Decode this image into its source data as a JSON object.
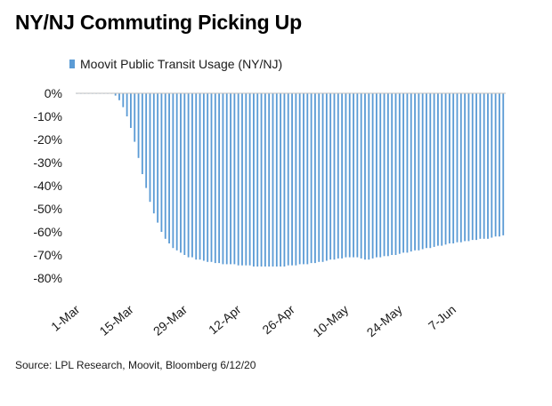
{
  "title": "NY/NJ Commuting Picking Up",
  "source": "Source: LPL Research, Moovit, Bloomberg 6/12/20",
  "colors": {
    "bar": "#5b9bd5",
    "text": "#1a1a1a",
    "axis": "#bfbfbf"
  },
  "chart_data": {
    "type": "bar",
    "series": [
      {
        "name": "Moovit Public Transit Usage (NY/NJ)"
      }
    ],
    "ylim": [
      -80,
      0
    ],
    "yticks": [
      0,
      -10,
      -20,
      -30,
      -40,
      -50,
      -60,
      -70,
      -80
    ],
    "ytick_labels": [
      "0%",
      "-10%",
      "-20%",
      "-30%",
      "-40%",
      "-50%",
      "-60%",
      "-70%",
      "-80%"
    ],
    "xtick_labels": [
      "1-Mar",
      "15-Mar",
      "29-Mar",
      "12-Apr",
      "26-Apr",
      "10-May",
      "24-May",
      "7-Jun"
    ],
    "start_date": "2020-03-01",
    "values": [
      0,
      0,
      0,
      0,
      0,
      0,
      0,
      0,
      0,
      0,
      -1,
      -3,
      -6,
      -10,
      -15,
      -21,
      -28,
      -35,
      -41,
      -47,
      -52,
      -56,
      -60,
      -63,
      -65,
      -67,
      -68,
      -69,
      -70,
      -71,
      -71,
      -72,
      -72,
      -72.5,
      -73,
      -73,
      -73.5,
      -73.5,
      -74,
      -74,
      -74,
      -74,
      -74.5,
      -74.5,
      -74.5,
      -74.5,
      -75,
      -75,
      -75,
      -75,
      -75,
      -75,
      -75,
      -75,
      -75,
      -74.5,
      -74.5,
      -74.5,
      -74,
      -74,
      -74,
      -73.5,
      -73.5,
      -73,
      -73,
      -72.5,
      -72,
      -72,
      -71.5,
      -71.5,
      -71,
      -71,
      -71,
      -71,
      -71.5,
      -72,
      -72,
      -71.5,
      -71,
      -71,
      -70.5,
      -70.5,
      -70,
      -70,
      -69.5,
      -69,
      -69,
      -68.5,
      -68,
      -68,
      -67.5,
      -67,
      -67,
      -66.5,
      -66,
      -66,
      -65.5,
      -65,
      -65,
      -64.5,
      -64.5,
      -64,
      -64,
      -63.5,
      -63.5,
      -63,
      -63,
      -63,
      -62.5,
      -62,
      -62,
      -61.5
    ]
  }
}
